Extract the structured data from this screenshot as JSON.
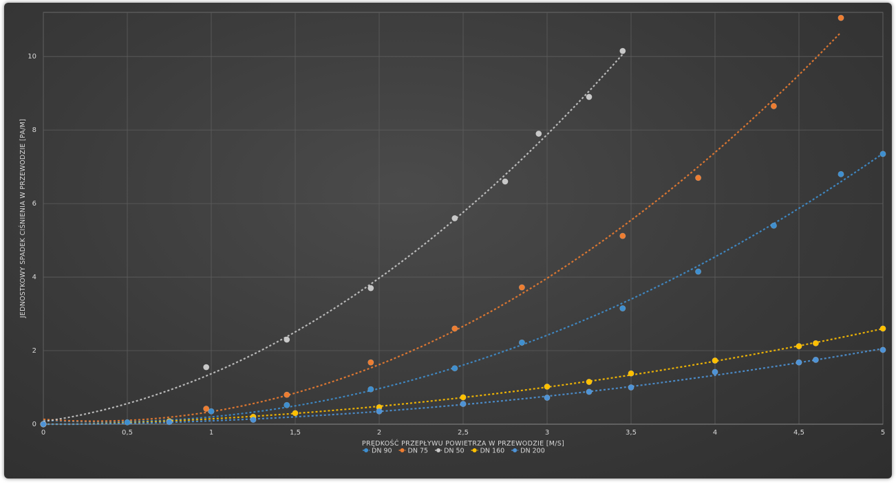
{
  "chart_data": {
    "type": "scatter",
    "xlabel": "PRĘDKOŚĆ PRZEPŁYWU POWIETRZA W PRZEWODZIE [M/S]",
    "ylabel": "JEDNOSTKOWY SPADEK CIŚNIENIA W PRZEWODZIE [PA/M]",
    "xlim": [
      0,
      5
    ],
    "ylim": [
      0,
      11.2
    ],
    "x_ticks": [
      {
        "value": 0,
        "label": "0"
      },
      {
        "value": 0.5,
        "label": "0,5"
      },
      {
        "value": 1,
        "label": "1"
      },
      {
        "value": 1.5,
        "label": "1,5"
      },
      {
        "value": 2,
        "label": "2"
      },
      {
        "value": 2.5,
        "label": "2,5"
      },
      {
        "value": 3,
        "label": "3"
      },
      {
        "value": 3.5,
        "label": "3,5"
      },
      {
        "value": 4,
        "label": "4"
      },
      {
        "value": 4.5,
        "label": "4,5"
      },
      {
        "value": 5,
        "label": "5"
      }
    ],
    "y_ticks": [
      {
        "value": 0,
        "label": "0"
      },
      {
        "value": 2,
        "label": "2"
      },
      {
        "value": 4,
        "label": "4"
      },
      {
        "value": 6,
        "label": "6"
      },
      {
        "value": 8,
        "label": "8"
      },
      {
        "value": 10,
        "label": "10"
      }
    ],
    "grid": true,
    "legend_position": "bottom",
    "trendline": "polynomial",
    "series": [
      {
        "name": "DN 90",
        "color": "#3f8fcf",
        "x": [
          0,
          0.5,
          1,
          1.45,
          1.95,
          2.45,
          2.85,
          3.45,
          3.9,
          4.35,
          4.75,
          5
        ],
        "y": [
          0,
          0.05,
          0.35,
          0.52,
          0.95,
          1.52,
          2.22,
          3.15,
          4.15,
          5.4,
          6.8,
          7.35
        ]
      },
      {
        "name": "DN 75",
        "color": "#ed7d31",
        "x": [
          0,
          0.97,
          1.45,
          1.95,
          2.45,
          2.85,
          3.45,
          3.9,
          4.35,
          4.75
        ],
        "y": [
          0,
          0.42,
          0.8,
          1.68,
          2.6,
          3.72,
          5.12,
          6.7,
          8.65,
          11.05
        ]
      },
      {
        "name": "DN 50",
        "color": "#c8c8c8",
        "x": [
          0,
          0.97,
          1.45,
          1.95,
          2.45,
          2.75,
          2.95,
          3.25,
          3.45
        ],
        "y": [
          0,
          1.55,
          2.3,
          3.7,
          5.6,
          6.6,
          7.9,
          8.9,
          10.15
        ]
      },
      {
        "name": "DN 160",
        "color": "#ffc000",
        "x": [
          0,
          0.75,
          1.25,
          1.5,
          2,
          2.5,
          3,
          3.25,
          3.5,
          4,
          4.5,
          4.6,
          5
        ],
        "y": [
          0,
          0.08,
          0.2,
          0.3,
          0.46,
          0.73,
          1.02,
          1.15,
          1.38,
          1.73,
          2.12,
          2.2,
          2.6
        ]
      },
      {
        "name": "DN 200",
        "color": "#4e93d6",
        "x": [
          0,
          0.75,
          1.25,
          2,
          2.5,
          3,
          3.25,
          3.5,
          4,
          4.5,
          4.6,
          5
        ],
        "y": [
          0,
          0.06,
          0.12,
          0.35,
          0.55,
          0.72,
          0.88,
          1.0,
          1.42,
          1.68,
          1.75,
          2.02
        ]
      }
    ]
  }
}
